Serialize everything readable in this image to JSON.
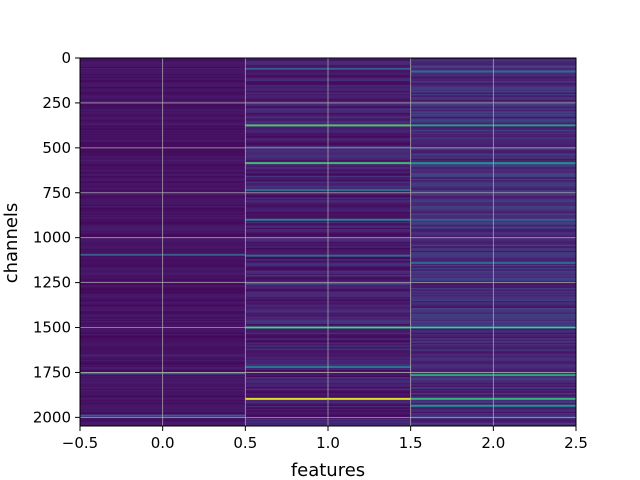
{
  "chart_data": {
    "type": "heatmap",
    "title": "",
    "xlabel": "features",
    "ylabel": "channels",
    "xlim": [
      -0.5,
      2.5
    ],
    "ylim": [
      2048,
      0
    ],
    "xticks": [
      -0.5,
      0.0,
      0.5,
      1.0,
      1.5,
      2.0,
      2.5
    ],
    "xtick_labels": [
      "−0.5",
      "0.0",
      "0.5",
      "1.0",
      "1.5",
      "2.0",
      "2.5"
    ],
    "yticks": [
      0,
      250,
      500,
      750,
      1000,
      1250,
      1500,
      1750,
      2000
    ],
    "ytick_labels": [
      "0",
      "250",
      "500",
      "750",
      "1000",
      "1250",
      "1500",
      "1750",
      "2000"
    ],
    "grid": true,
    "colormap": "viridis",
    "n_channels": 2048,
    "columns": [
      0,
      1,
      2
    ],
    "base_level": [
      0.06,
      0.1,
      0.14
    ],
    "highlights": [
      {
        "channel": 1095,
        "column": 0,
        "value": 0.3
      },
      {
        "channel": 1755,
        "column": 0,
        "value": 0.35
      },
      {
        "channel": 1990,
        "column": 0,
        "value": 0.3
      },
      {
        "channel": 60,
        "column": 1,
        "value": 0.3
      },
      {
        "channel": 375,
        "column": 1,
        "value": 0.72
      },
      {
        "channel": 585,
        "column": 1,
        "value": 0.68
      },
      {
        "channel": 735,
        "column": 1,
        "value": 0.35
      },
      {
        "channel": 900,
        "column": 1,
        "value": 0.45
      },
      {
        "channel": 1100,
        "column": 1,
        "value": 0.35
      },
      {
        "channel": 1255,
        "column": 1,
        "value": 0.3
      },
      {
        "channel": 1500,
        "column": 1,
        "value": 0.65
      },
      {
        "channel": 1720,
        "column": 1,
        "value": 0.4
      },
      {
        "channel": 1897,
        "column": 1,
        "value": 0.95
      },
      {
        "channel": 75,
        "column": 2,
        "value": 0.35
      },
      {
        "channel": 375,
        "column": 2,
        "value": 0.55
      },
      {
        "channel": 585,
        "column": 2,
        "value": 0.5
      },
      {
        "channel": 900,
        "column": 2,
        "value": 0.3
      },
      {
        "channel": 1140,
        "column": 2,
        "value": 0.35
      },
      {
        "channel": 1500,
        "column": 2,
        "value": 0.55
      },
      {
        "channel": 1765,
        "column": 2,
        "value": 0.6
      },
      {
        "channel": 1897,
        "column": 2,
        "value": 0.65
      },
      {
        "channel": 1935,
        "column": 2,
        "value": 0.5
      }
    ]
  }
}
